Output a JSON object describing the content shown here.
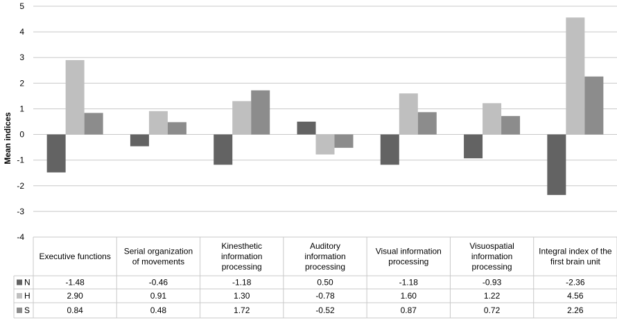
{
  "chart_data": {
    "type": "bar",
    "title": "",
    "xlabel": "",
    "ylabel": "Mean indices",
    "ylim": [
      -4,
      5
    ],
    "yticks": [
      5,
      4,
      3,
      2,
      1,
      0,
      -1,
      -2,
      -3,
      -4
    ],
    "grid": true,
    "legend_placement": "data-table-left",
    "categories": [
      [
        "Executive functions"
      ],
      [
        "Serial organization",
        "of movements"
      ],
      [
        "Kinesthetic",
        "information",
        "processing"
      ],
      [
        "Auditory",
        "information",
        "processing"
      ],
      [
        "Visual information",
        "processing"
      ],
      [
        "Visuospatial",
        "information",
        "processing"
      ],
      [
        "Integral index of the",
        "first brain unit"
      ]
    ],
    "series": [
      {
        "name": "N",
        "color": "#636363",
        "values": [
          -1.48,
          -0.46,
          -1.18,
          0.5,
          -1.18,
          -0.93,
          -2.36
        ],
        "labels": [
          "-1.48",
          "-0.46",
          "-1.18",
          "0.50",
          "-1.18",
          "-0.93",
          "-2.36"
        ]
      },
      {
        "name": "H",
        "color": "#bfbfbf",
        "values": [
          2.9,
          0.91,
          1.3,
          -0.78,
          1.6,
          1.22,
          4.56
        ],
        "labels": [
          "2.90",
          "0.91",
          "1.30",
          "-0.78",
          "1.60",
          "1.22",
          "4.56"
        ]
      },
      {
        "name": "S",
        "color": "#8c8c8c",
        "values": [
          0.84,
          0.48,
          1.72,
          -0.52,
          0.87,
          0.72,
          2.26
        ],
        "labels": [
          "0.84",
          "0.48",
          "1.72",
          "-0.52",
          "0.87",
          "0.72",
          "2.26"
        ]
      }
    ]
  }
}
